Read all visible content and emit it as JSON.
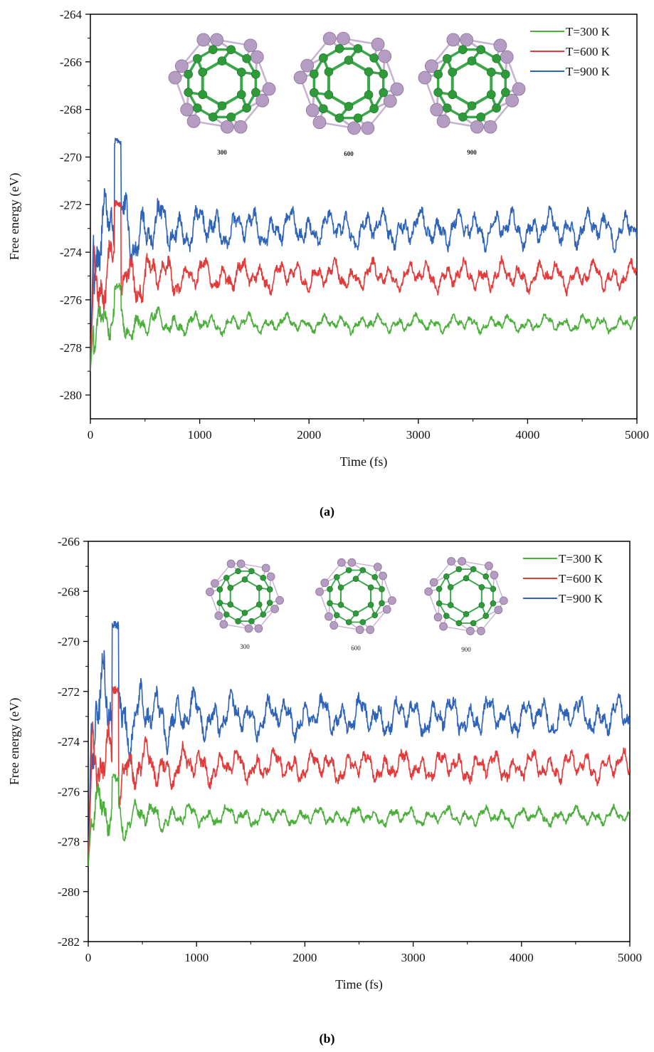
{
  "chart_data": [
    {
      "type": "line",
      "panel": "a",
      "caption": "(a)",
      "xlabel": "Time (fs)",
      "ylabel": "Free energy (eV)",
      "xlim": [
        0,
        5000
      ],
      "ylim": [
        -281,
        -264
      ],
      "xticks": [
        0,
        1000,
        2000,
        3000,
        4000,
        5000
      ],
      "yticks": [
        -280,
        -278,
        -276,
        -274,
        -272,
        -270,
        -268,
        -266,
        -264
      ],
      "legend_position": "top-right",
      "structure_labels": [
        "300",
        "600",
        "900"
      ],
      "structure_style": "dense",
      "series": [
        {
          "name": "T=300 K",
          "color": "#4caf3c",
          "mean": -277.0,
          "amplitude": 0.35,
          "start": -279.0,
          "init_amp": 1.2,
          "peak_early": -275.3
        },
        {
          "name": "T=600 K",
          "color": "#e23b3b",
          "mean": -275.0,
          "amplitude": 0.6,
          "start": -279.0,
          "init_amp": 1.8,
          "peak_early": -271.8
        },
        {
          "name": "T=900 K",
          "color": "#2e63b8",
          "mean": -273.0,
          "amplitude": 0.75,
          "start": -279.0,
          "init_amp": 2.4,
          "peak_early": -269.2
        }
      ]
    },
    {
      "type": "line",
      "panel": "b",
      "caption": "(b)",
      "xlabel": "Time (fs)",
      "ylabel": "Free energy (eV)",
      "xlim": [
        0,
        5000
      ],
      "ylim": [
        -282,
        -266
      ],
      "xticks": [
        0,
        1000,
        2000,
        3000,
        4000,
        5000
      ],
      "yticks": [
        -282,
        -280,
        -278,
        -276,
        -274,
        -272,
        -270,
        -268,
        -266
      ],
      "legend_position": "top-right",
      "structure_labels": [
        "300",
        "600",
        "900"
      ],
      "structure_style": "open",
      "series": [
        {
          "name": "T=300 K",
          "color": "#4caf3c",
          "mean": -277.0,
          "amplitude": 0.35,
          "start": -279.0,
          "init_amp": 1.2,
          "peak_early": -275.3
        },
        {
          "name": "T=600 K",
          "color": "#e23b3b",
          "mean": -275.0,
          "amplitude": 0.6,
          "start": -279.0,
          "init_amp": 1.8,
          "peak_early": -271.8
        },
        {
          "name": "T=900 K",
          "color": "#2e63b8",
          "mean": -273.0,
          "amplitude": 0.75,
          "start": -279.0,
          "init_amp": 2.4,
          "peak_early": -269.2
        }
      ]
    }
  ],
  "colors": {
    "atom_green": "#2f9a3a",
    "atom_purple": "#b59cc2",
    "bond_green": "#3aa84a",
    "bond_purple": "#c7b3d1"
  }
}
